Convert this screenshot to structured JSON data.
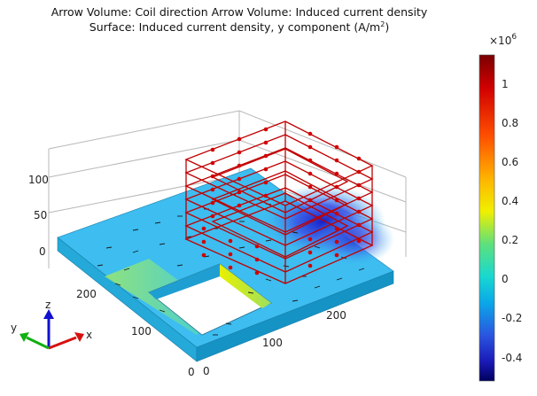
{
  "title": {
    "line1": "Arrow Volume: Coil direction  Arrow Volume: Induced current density",
    "line2_prefix": "Surface: Induced current density, y component (A/m",
    "line2_exp": "2",
    "line2_suffix": ")"
  },
  "z_axis": {
    "ticks": [
      "100",
      "50",
      "0"
    ]
  },
  "y_axis": {
    "ticks": [
      "200",
      "100",
      "0"
    ]
  },
  "x_axis": {
    "ticks": [
      "200",
      "100",
      "0"
    ]
  },
  "colorbar": {
    "multiplier_base": "×10",
    "multiplier_exp": "6",
    "ticks": [
      "1",
      "0.8",
      "0.6",
      "0.4",
      "0.2",
      "0",
      "-0.2",
      "-0.4"
    ],
    "colors": [
      "#7a0000",
      "#d00000",
      "#ff4a00",
      "#ffb000",
      "#f2f200",
      "#5fe07a",
      "#18d8d0",
      "#0aa8e8",
      "#2a55e0",
      "#1a1ab8",
      "#00005e"
    ]
  },
  "triad": {
    "x": "x",
    "y": "y",
    "z": "z"
  },
  "colors": {
    "arrow": "#d10000",
    "wire_arrow": "#c00000",
    "plate_top": "#3dbdf0"
  }
}
